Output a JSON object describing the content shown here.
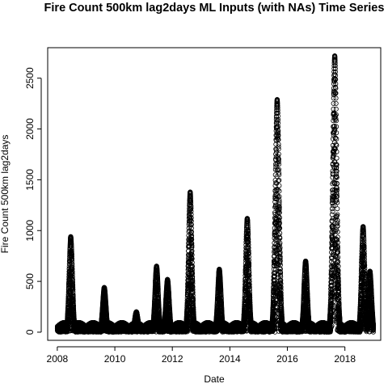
{
  "chart_data": {
    "type": "scatter",
    "title": "Fire Count 500km lag2days ML Inputs (with NAs) Time Series",
    "xlabel": "Date",
    "ylabel": "Fire Count 500km lag2days",
    "x_ticks": [
      "2008",
      "2010",
      "2012",
      "2014",
      "2016",
      "2018"
    ],
    "y_ticks": [
      0,
      500,
      1000,
      1500,
      2000,
      2500
    ],
    "xlim": [
      "2007-09-01",
      "2019-04-01"
    ],
    "ylim": [
      -80,
      2800
    ],
    "grid": false,
    "legend": "none",
    "marker": "open-circle",
    "marker_color": "#000000",
    "x_range": [
      "2008-01-01",
      "2018-12-31"
    ],
    "y_range": [
      0,
      2720
    ],
    "peaks": [
      {
        "date": "2008-06-20",
        "value": 940
      },
      {
        "date": "2009-08-20",
        "value": 440
      },
      {
        "date": "2010-10-01",
        "value": 200
      },
      {
        "date": "2011-06-15",
        "value": 650
      },
      {
        "date": "2011-11-01",
        "value": 520
      },
      {
        "date": "2012-08-15",
        "value": 1380
      },
      {
        "date": "2013-08-20",
        "value": 620
      },
      {
        "date": "2014-08-10",
        "value": 1120
      },
      {
        "date": "2015-08-25",
        "value": 2290
      },
      {
        "date": "2016-08-20",
        "value": 700
      },
      {
        "date": "2017-08-25",
        "value": 2720
      },
      {
        "date": "2018-08-20",
        "value": 1040
      },
      {
        "date": "2018-11-15",
        "value": 600
      }
    ]
  }
}
